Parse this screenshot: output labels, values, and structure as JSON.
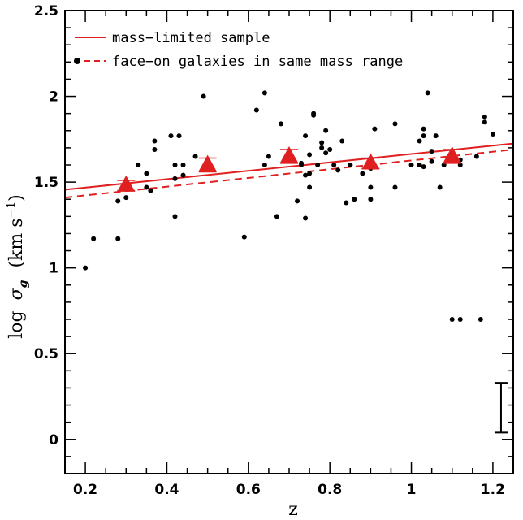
{
  "chart_data": {
    "type": "scatter",
    "xlabel": "z",
    "ylabel_prefix": "log",
    "ylabel_symbol": "σ",
    "ylabel_subscript": "g",
    "ylabel_units_open": "(km s",
    "ylabel_units_exp": "−1",
    "ylabel_units_close": ")",
    "xlim": [
      0.15,
      1.25
    ],
    "ylim": [
      -0.2,
      2.5
    ],
    "xticks": [
      0.2,
      0.4,
      0.6,
      0.8,
      1,
      1.2
    ],
    "xtick_labels": [
      "0.2",
      "0.4",
      "0.6",
      "0.8",
      "1",
      "1.2"
    ],
    "yticks": [
      0,
      0.5,
      1,
      1.5,
      2,
      2.5
    ],
    "ytick_labels": [
      "0",
      "0.5",
      "1",
      "1.5",
      "2",
      "2.5"
    ],
    "legend": {
      "placement": "top-left",
      "entries": [
        {
          "label": "mass−limited sample",
          "style": "solid",
          "color": "#e02020"
        },
        {
          "label": "face−on galaxies in same mass range",
          "style": "dashed",
          "color": "#e02020",
          "marker": "dot"
        }
      ]
    },
    "series": [
      {
        "kind": "scatter-points",
        "color": "#000000",
        "points": [
          [
            0.2,
            1.0
          ],
          [
            0.22,
            1.17
          ],
          [
            0.28,
            1.17
          ],
          [
            0.28,
            1.39
          ],
          [
            0.3,
            1.41
          ],
          [
            0.3,
            1.47
          ],
          [
            0.33,
            1.6
          ],
          [
            0.35,
            1.47
          ],
          [
            0.35,
            1.55
          ],
          [
            0.36,
            1.45
          ],
          [
            0.37,
            1.69
          ],
          [
            0.37,
            1.74
          ],
          [
            0.41,
            1.77
          ],
          [
            0.42,
            1.3
          ],
          [
            0.42,
            1.52
          ],
          [
            0.42,
            1.6
          ],
          [
            0.43,
            1.77
          ],
          [
            0.44,
            1.54
          ],
          [
            0.44,
            1.6
          ],
          [
            0.47,
            1.65
          ],
          [
            0.49,
            2.0
          ],
          [
            0.59,
            1.18
          ],
          [
            0.62,
            1.92
          ],
          [
            0.64,
            2.02
          ],
          [
            0.64,
            1.6
          ],
          [
            0.65,
            1.65
          ],
          [
            0.67,
            1.3
          ],
          [
            0.68,
            1.84
          ],
          [
            0.7,
            1.63
          ],
          [
            0.71,
            1.63
          ],
          [
            0.72,
            1.39
          ],
          [
            0.73,
            1.61
          ],
          [
            0.73,
            1.6
          ],
          [
            0.74,
            1.29
          ],
          [
            0.74,
            1.54
          ],
          [
            0.74,
            1.77
          ],
          [
            0.75,
            1.47
          ],
          [
            0.75,
            1.55
          ],
          [
            0.75,
            1.66
          ],
          [
            0.76,
            1.89
          ],
          [
            0.76,
            1.9
          ],
          [
            0.77,
            1.6
          ],
          [
            0.78,
            1.7
          ],
          [
            0.78,
            1.73
          ],
          [
            0.79,
            1.67
          ],
          [
            0.79,
            1.8
          ],
          [
            0.8,
            1.69
          ],
          [
            0.81,
            1.6
          ],
          [
            0.82,
            1.57
          ],
          [
            0.83,
            1.74
          ],
          [
            0.84,
            1.38
          ],
          [
            0.85,
            1.6
          ],
          [
            0.85,
            1.6
          ],
          [
            0.86,
            1.4
          ],
          [
            0.88,
            1.55
          ],
          [
            0.9,
            1.4
          ],
          [
            0.9,
            1.47
          ],
          [
            0.9,
            1.58
          ],
          [
            0.91,
            1.81
          ],
          [
            0.96,
            1.47
          ],
          [
            0.96,
            1.84
          ],
          [
            1.0,
            1.6
          ],
          [
            1.02,
            1.6
          ],
          [
            1.02,
            1.74
          ],
          [
            1.03,
            1.59
          ],
          [
            1.03,
            1.77
          ],
          [
            1.03,
            1.81
          ],
          [
            1.04,
            2.02
          ],
          [
            1.05,
            1.62
          ],
          [
            1.05,
            1.68
          ],
          [
            1.06,
            1.77
          ],
          [
            1.07,
            1.47
          ],
          [
            1.08,
            1.6
          ],
          [
            1.1,
            0.7
          ],
          [
            1.12,
            0.7
          ],
          [
            1.12,
            1.6
          ],
          [
            1.12,
            1.63
          ],
          [
            1.16,
            1.65
          ],
          [
            1.17,
            0.7
          ],
          [
            1.18,
            1.85
          ],
          [
            1.18,
            1.88
          ],
          [
            1.2,
            1.78
          ]
        ]
      },
      {
        "kind": "binned-means",
        "color": "#e02020",
        "marker": "triangle",
        "points": [
          {
            "x": 0.3,
            "y": 1.48,
            "err": 0.03
          },
          {
            "x": 0.5,
            "y": 1.6,
            "err": 0.04
          },
          {
            "x": 0.7,
            "y": 1.65,
            "err": 0.04
          },
          {
            "x": 0.9,
            "y": 1.61,
            "err": 0.03
          },
          {
            "x": 1.1,
            "y": 1.65,
            "err": 0.04
          }
        ]
      }
    ],
    "fit_lines": [
      {
        "style": "solid",
        "color": "#e02020",
        "x": [
          0.15,
          1.25
        ],
        "y": [
          1.456,
          1.725
        ]
      },
      {
        "style": "dashed",
        "color": "#e02020",
        "x": [
          0.15,
          1.25
        ],
        "y": [
          1.41,
          1.69
        ]
      }
    ],
    "error_bar_scale": {
      "x": 1.22,
      "y_low": 0.04,
      "y_high": 0.33,
      "color": "#000000"
    }
  }
}
